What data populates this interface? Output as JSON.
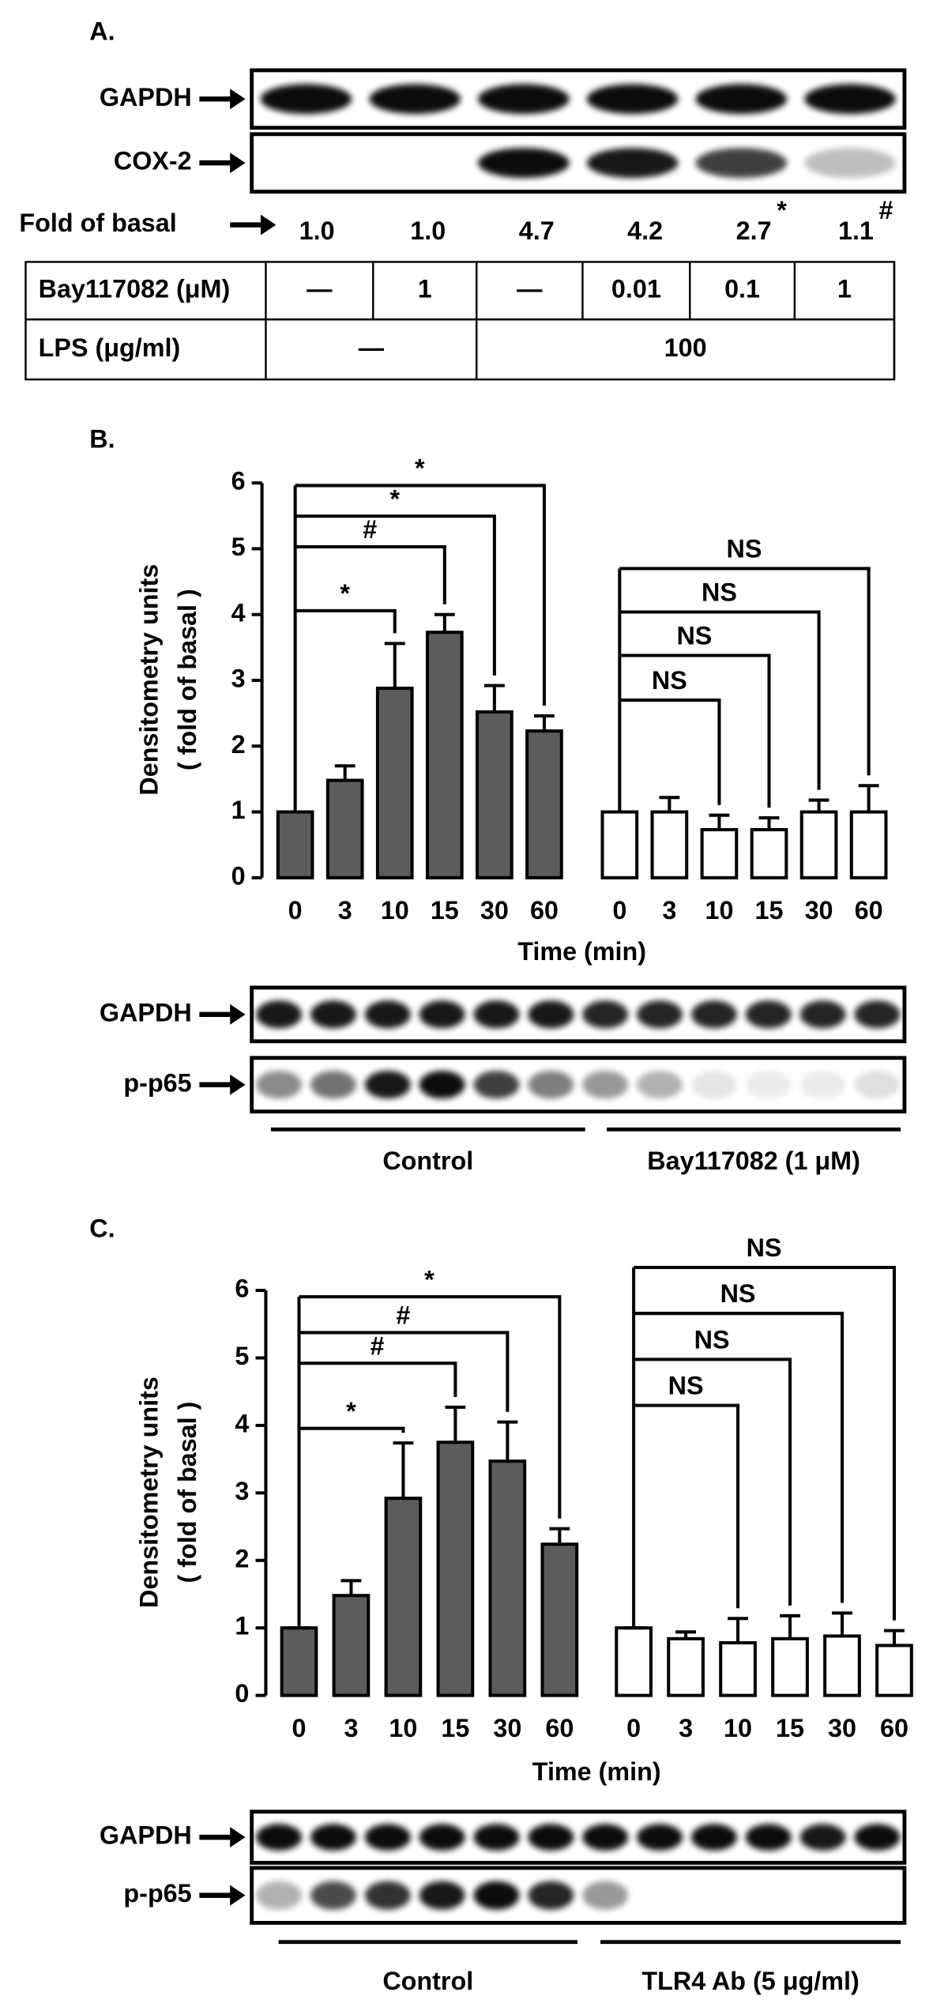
{
  "panel_a": {
    "label": "A.",
    "blots": [
      {
        "label": "GAPDH"
      },
      {
        "label": "COX-2"
      }
    ],
    "fold_label": "Fold of basal",
    "fold": [
      {
        "value": "1.0"
      },
      {
        "value": "1.0"
      },
      {
        "value": "4.7"
      },
      {
        "value": "4.2"
      },
      {
        "value": "2.7",
        "sig": "*"
      },
      {
        "value": "1.1",
        "sig": "#"
      }
    ],
    "table": {
      "rows": [
        {
          "label": "Bay117082 (μM)",
          "cells": [
            "—",
            1,
            "—",
            0.01,
            0.1,
            1
          ]
        },
        {
          "label": "LPS  (μg/ml)",
          "cells": [
            "—",
            100
          ]
        }
      ]
    }
  },
  "chart_data": [
    {
      "type": "bar",
      "panel": "B.",
      "ylabel_lines": [
        "Densitometry units",
        "( fold of basal )"
      ],
      "xlabel": "Time (min)",
      "categories": [
        0,
        3,
        10,
        15,
        30,
        60
      ],
      "ylim": [
        0,
        6
      ],
      "yticks": [
        0,
        1,
        2,
        3,
        4,
        5,
        6
      ],
      "series": [
        {
          "name": "Control",
          "color": "#5c5c5c",
          "values": [
            1.0,
            1.48,
            2.88,
            3.73,
            2.52,
            2.23
          ],
          "errors": [
            0,
            0.22,
            0.68,
            0.27,
            0.4,
            0.23
          ],
          "significance": [
            {
              "from": 0,
              "to": 2,
              "label": "*"
            },
            {
              "from": 0,
              "to": 3,
              "label": "#"
            },
            {
              "from": 0,
              "to": 4,
              "label": "*"
            },
            {
              "from": 0,
              "to": 5,
              "label": "*"
            }
          ]
        },
        {
          "name": "Bay117082 (1 μM)",
          "color": "#ffffff",
          "values": [
            1.0,
            1.0,
            0.73,
            0.73,
            1.0,
            1.0
          ],
          "errors": [
            0,
            0.22,
            0.22,
            0.18,
            0.18,
            0.4
          ],
          "significance": [
            {
              "from": 0,
              "to": 2,
              "label": "NS"
            },
            {
              "from": 0,
              "to": 3,
              "label": "NS"
            },
            {
              "from": 0,
              "to": 4,
              "label": "NS"
            },
            {
              "from": 0,
              "to": 5,
              "label": "NS"
            }
          ]
        }
      ],
      "blots": [
        {
          "label": "GAPDH"
        },
        {
          "label": "p-p65"
        }
      ]
    },
    {
      "type": "bar",
      "panel": "C.",
      "ylabel_lines": [
        "Densitometry units",
        "( fold of basal )"
      ],
      "xlabel": "Time (min)",
      "categories": [
        0,
        3,
        10,
        15,
        30,
        60
      ],
      "ylim": [
        0,
        6
      ],
      "yticks": [
        0,
        1,
        2,
        3,
        4,
        5,
        6
      ],
      "series": [
        {
          "name": "Control",
          "color": "#5c5c5c",
          "values": [
            1.0,
            1.48,
            2.92,
            3.75,
            3.47,
            2.24
          ],
          "errors": [
            0,
            0.22,
            0.82,
            0.52,
            0.58,
            0.23
          ],
          "significance": [
            {
              "from": 0,
              "to": 2,
              "label": "*"
            },
            {
              "from": 0,
              "to": 3,
              "label": "#"
            },
            {
              "from": 0,
              "to": 4,
              "label": "#"
            },
            {
              "from": 0,
              "to": 5,
              "label": "*"
            }
          ]
        },
        {
          "name": "TLR4 Ab (5 μg/ml)",
          "color": "#ffffff",
          "values": [
            1.0,
            0.84,
            0.78,
            0.84,
            0.88,
            0.74
          ],
          "errors": [
            0,
            0.1,
            0.36,
            0.34,
            0.34,
            0.22
          ],
          "significance": [
            {
              "from": 0,
              "to": 2,
              "label": "NS"
            },
            {
              "from": 0,
              "to": 3,
              "label": "NS"
            },
            {
              "from": 0,
              "to": 4,
              "label": "NS"
            },
            {
              "from": 0,
              "to": 5,
              "label": "NS"
            }
          ]
        }
      ],
      "blots": [
        {
          "label": "GAPDH"
        },
        {
          "label": "p-p65"
        }
      ]
    }
  ]
}
